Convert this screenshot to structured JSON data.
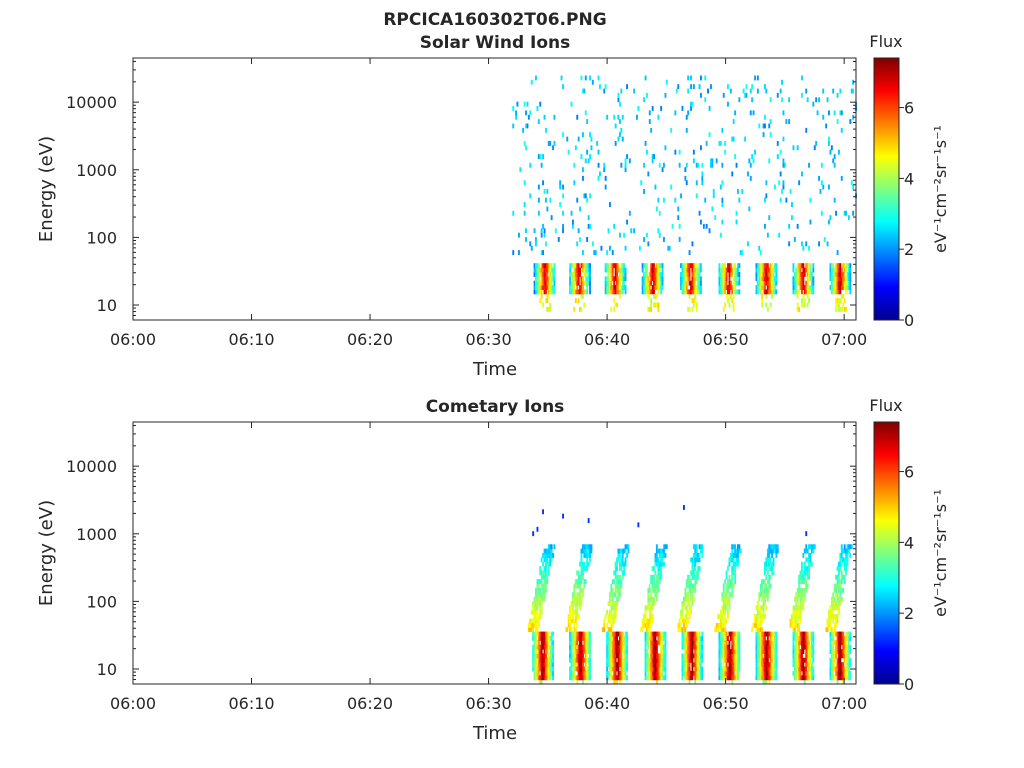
{
  "figure_title": "RPCICA160302T06.PNG",
  "colors": {
    "colormap": "jet",
    "axis": "#262626",
    "background": "#ffffff"
  },
  "chart_data": [
    {
      "type": "heatmap",
      "title": "Solar Wind Ions",
      "xlabel": "Time",
      "ylabel": "Energy (eV)",
      "x_range": [
        "06:00",
        "07:01"
      ],
      "x_ticks": [
        "06:00",
        "06:10",
        "06:20",
        "06:30",
        "06:40",
        "06:50",
        "07:00"
      ],
      "y_scale": "log",
      "y_range": [
        6,
        45000
      ],
      "y_ticks": [
        "10",
        "100",
        "1000",
        "10000"
      ],
      "colorbar": {
        "label": "Flux",
        "unit": "eV⁻¹cm⁻²sr⁻¹s⁻¹",
        "range": [
          0,
          7.4
        ],
        "ticks": [
          "0",
          "2",
          "4",
          "6"
        ]
      },
      "data_start": "06:32",
      "data_end": "07:01",
      "sweep_centers": [
        "06:34.7",
        "06:37.6",
        "06:40.6",
        "06:43.8",
        "06:47.0",
        "06:50.2",
        "06:53.4",
        "06:56.5",
        "06:59.6"
      ],
      "peak_energy_band": [
        15,
        30
      ],
      "peak_flux": 6.5,
      "background_flux": 1.8,
      "background_energy_range": [
        60,
        25000
      ]
    },
    {
      "type": "heatmap",
      "title": "Cometary Ions",
      "xlabel": "Time",
      "ylabel": "Energy (eV)",
      "x_range": [
        "06:00",
        "07:01"
      ],
      "x_ticks": [
        "06:00",
        "06:10",
        "06:20",
        "06:30",
        "06:40",
        "06:50",
        "07:00"
      ],
      "y_scale": "log",
      "y_range": [
        6,
        45000
      ],
      "y_ticks": [
        "10",
        "100",
        "1000",
        "10000"
      ],
      "colorbar": {
        "label": "Flux",
        "unit": "eV⁻¹cm⁻²sr⁻¹s⁻¹",
        "range": [
          0,
          7.4
        ],
        "ticks": [
          "0",
          "2",
          "4",
          "6"
        ]
      },
      "data_start": "06:32",
      "data_end": "07:01",
      "sweep_centers": [
        "06:34.5",
        "06:37.7",
        "06:40.8",
        "06:44.0",
        "06:47.1",
        "06:50.3",
        "06:53.4",
        "06:56.5",
        "06:59.6"
      ],
      "peak_energy_band": [
        10,
        30
      ],
      "peak_flux": 7.0,
      "plume_max_energy": 700,
      "background_flux": 1.5
    }
  ]
}
